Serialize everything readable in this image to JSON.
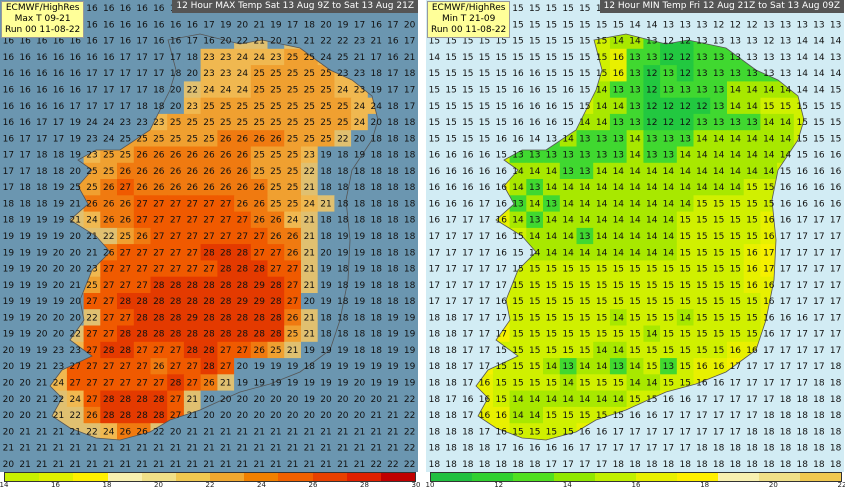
{
  "left_panel": {
    "title": "12 Hour MAX Temp Sat 13 Aug 9Z to Sat 13 Aug 21Z",
    "info": [
      "ECMWF/HighRes",
      "Max T 09-21",
      "Run 00 11-08-22"
    ],
    "background_color": "#6b96b0",
    "scale_labels": [
      "14",
      "16",
      "18",
      "20",
      "22",
      "24",
      "26",
      "28",
      "30"
    ],
    "scale_colors": [
      "#c8f000",
      "#e0f000",
      "#fff000",
      "#f8f0b0",
      "#f0e088",
      "#f0c850",
      "#f0a830",
      "#f08000",
      "#f06000",
      "#e84000",
      "#e02000",
      "#c00000"
    ],
    "grid": [
      [
        16,
        16,
        16,
        16,
        16,
        16,
        16,
        16,
        16,
        16,
        16,
        16,
        16,
        17,
        17,
        18,
        17,
        19,
        22,
        21,
        22,
        21,
        22,
        20,
        20
      ],
      [
        16,
        16,
        16,
        16,
        16,
        16,
        16,
        16,
        16,
        16,
        16,
        16,
        17,
        19,
        20,
        21,
        19,
        17,
        18,
        20,
        19,
        17,
        16,
        17,
        20
      ],
      [
        16,
        16,
        16,
        16,
        16,
        16,
        17,
        16,
        17,
        16,
        16,
        17,
        16,
        20,
        22,
        21,
        20,
        21,
        21,
        22,
        22,
        23,
        21,
        16,
        17
      ],
      [
        16,
        16,
        16,
        16,
        16,
        16,
        16,
        17,
        17,
        17,
        17,
        18,
        23,
        23,
        24,
        24,
        23,
        25,
        25,
        24,
        25,
        21,
        17,
        16,
        21
      ],
      [
        16,
        16,
        16,
        16,
        16,
        17,
        17,
        17,
        17,
        17,
        18,
        20,
        23,
        23,
        24,
        25,
        25,
        25,
        25,
        25,
        23,
        23,
        18,
        17,
        18
      ],
      [
        16,
        16,
        16,
        16,
        16,
        17,
        17,
        17,
        17,
        18,
        20,
        22,
        24,
        24,
        24,
        25,
        25,
        25,
        25,
        25,
        24,
        23,
        19,
        17,
        17
      ],
      [
        16,
        16,
        16,
        16,
        17,
        17,
        17,
        17,
        18,
        18,
        20,
        23,
        25,
        25,
        25,
        25,
        25,
        25,
        25,
        25,
        25,
        24,
        24,
        18,
        17
      ],
      [
        16,
        16,
        17,
        17,
        19,
        24,
        24,
        23,
        23,
        23,
        25,
        25,
        25,
        25,
        25,
        25,
        25,
        25,
        25,
        25,
        25,
        24,
        20,
        18,
        18
      ],
      [
        16,
        17,
        17,
        17,
        19,
        23,
        24,
        25,
        25,
        25,
        25,
        25,
        25,
        26,
        26,
        26,
        26,
        25,
        25,
        25,
        22,
        20,
        18,
        18,
        18
      ],
      [
        17,
        17,
        18,
        18,
        19,
        23,
        25,
        25,
        26,
        26,
        26,
        26,
        26,
        26,
        26,
        25,
        25,
        25,
        23,
        19,
        18,
        19,
        18,
        18,
        18
      ],
      [
        17,
        17,
        18,
        18,
        20,
        25,
        25,
        26,
        26,
        26,
        26,
        26,
        26,
        26,
        26,
        25,
        25,
        25,
        22,
        18,
        18,
        18,
        18,
        18,
        18
      ],
      [
        17,
        18,
        18,
        19,
        25,
        25,
        26,
        27,
        26,
        26,
        26,
        26,
        26,
        26,
        26,
        26,
        25,
        25,
        21,
        18,
        18,
        18,
        18,
        18,
        18
      ],
      [
        18,
        18,
        18,
        19,
        21,
        26,
        26,
        26,
        27,
        27,
        27,
        27,
        27,
        27,
        26,
        26,
        25,
        25,
        24,
        21,
        18,
        18,
        18,
        18,
        18
      ],
      [
        18,
        19,
        19,
        19,
        21,
        24,
        26,
        26,
        27,
        27,
        27,
        27,
        27,
        27,
        27,
        26,
        26,
        24,
        21,
        18,
        18,
        18,
        18,
        18,
        18
      ],
      [
        19,
        19,
        19,
        19,
        20,
        21,
        22,
        25,
        26,
        27,
        27,
        27,
        27,
        27,
        27,
        27,
        26,
        26,
        21,
        18,
        19,
        19,
        18,
        18,
        18
      ],
      [
        19,
        19,
        19,
        20,
        20,
        21,
        26,
        27,
        27,
        27,
        27,
        27,
        28,
        28,
        28,
        27,
        27,
        26,
        21,
        20,
        19,
        19,
        18,
        18,
        18
      ],
      [
        19,
        19,
        20,
        20,
        20,
        23,
        27,
        27,
        27,
        27,
        27,
        27,
        27,
        28,
        28,
        28,
        27,
        27,
        21,
        19,
        18,
        19,
        18,
        18,
        18
      ],
      [
        19,
        19,
        19,
        20,
        21,
        25,
        27,
        27,
        27,
        28,
        28,
        28,
        28,
        28,
        28,
        29,
        28,
        27,
        21,
        19,
        18,
        19,
        18,
        18,
        18
      ],
      [
        19,
        19,
        19,
        19,
        20,
        27,
        27,
        28,
        28,
        28,
        28,
        28,
        28,
        28,
        29,
        29,
        28,
        27,
        20,
        19,
        18,
        19,
        18,
        18,
        18
      ],
      [
        19,
        19,
        20,
        20,
        20,
        22,
        27,
        27,
        28,
        28,
        28,
        29,
        28,
        28,
        28,
        28,
        28,
        26,
        21,
        18,
        18,
        18,
        18,
        19,
        19
      ],
      [
        19,
        19,
        20,
        20,
        22,
        27,
        27,
        28,
        28,
        28,
        28,
        28,
        28,
        28,
        28,
        28,
        28,
        25,
        21,
        18,
        18,
        18,
        18,
        19,
        19
      ],
      [
        20,
        19,
        19,
        23,
        23,
        27,
        28,
        28,
        27,
        27,
        27,
        28,
        28,
        27,
        27,
        26,
        25,
        21,
        19,
        19,
        19,
        18,
        18,
        19,
        19
      ],
      [
        20,
        19,
        21,
        23,
        27,
        27,
        27,
        27,
        27,
        26,
        27,
        27,
        28,
        27,
        20,
        19,
        19,
        19,
        18,
        19,
        19,
        19,
        19,
        19,
        19
      ],
      [
        20,
        20,
        21,
        24,
        27,
        27,
        27,
        27,
        27,
        27,
        28,
        27,
        26,
        21,
        19,
        19,
        19,
        19,
        19,
        19,
        19,
        20,
        19,
        19,
        19
      ],
      [
        20,
        20,
        21,
        22,
        24,
        27,
        28,
        28,
        28,
        28,
        27,
        21,
        20,
        20,
        20,
        20,
        20,
        20,
        19,
        20,
        20,
        20,
        20,
        21,
        22
      ],
      [
        20,
        20,
        21,
        21,
        22,
        26,
        28,
        28,
        28,
        28,
        27,
        21,
        20,
        20,
        20,
        20,
        20,
        20,
        20,
        20,
        20,
        20,
        21,
        21,
        22
      ],
      [
        20,
        21,
        21,
        21,
        21,
        22,
        24,
        26,
        26,
        22,
        20,
        21,
        21,
        21,
        21,
        21,
        21,
        21,
        21,
        21,
        21,
        21,
        21,
        21,
        22
      ],
      [
        21,
        21,
        21,
        21,
        21,
        21,
        21,
        21,
        21,
        21,
        21,
        21,
        21,
        21,
        21,
        21,
        21,
        21,
        21,
        21,
        21,
        21,
        21,
        21,
        22
      ],
      [
        20,
        21,
        21,
        21,
        21,
        21,
        21,
        21,
        21,
        21,
        21,
        21,
        21,
        21,
        21,
        21,
        21,
        21,
        21,
        21,
        21,
        21,
        22,
        22,
        22
      ]
    ]
  },
  "right_panel": {
    "title": "12 Hour MIN Temp Fri 12 Aug 21Z to Sat 13 Aug 09Z",
    "info": [
      "ECMWF/HighRes",
      "Min T 21-09",
      "Run 00 11-08-22"
    ],
    "background_color": "#d2ecf4",
    "scale_labels": [
      "10",
      "12",
      "14",
      "16",
      "18",
      "20",
      "22"
    ],
    "scale_colors": [
      "#20c040",
      "#30d030",
      "#50e020",
      "#90e800",
      "#c0f000",
      "#e8f000",
      "#fff000",
      "#f8f0b0",
      "#f0e088",
      "#f0c850"
    ],
    "grid": [
      [
        15,
        15,
        15,
        15,
        15,
        15,
        15,
        15,
        15,
        15,
        15,
        15,
        14,
        14,
        14,
        14,
        13,
        13,
        13,
        13,
        13,
        13,
        12,
        12,
        12
      ],
      [
        15,
        15,
        15,
        15,
        15,
        15,
        15,
        15,
        15,
        15,
        15,
        15,
        14,
        14,
        13,
        13,
        13,
        12,
        12,
        12,
        13,
        13,
        13,
        13,
        13
      ],
      [
        15,
        15,
        15,
        15,
        15,
        15,
        15,
        15,
        15,
        15,
        15,
        14,
        14,
        13,
        12,
        12,
        13,
        13,
        13,
        13,
        12,
        13,
        14,
        14,
        14
      ],
      [
        14,
        15,
        15,
        15,
        15,
        15,
        15,
        15,
        15,
        15,
        15,
        16,
        13,
        13,
        12,
        12,
        13,
        13,
        13,
        13,
        13,
        13,
        14,
        14,
        13
      ],
      [
        15,
        15,
        15,
        15,
        15,
        16,
        16,
        15,
        15,
        15,
        15,
        16,
        13,
        12,
        13,
        12,
        13,
        13,
        13,
        13,
        13,
        13,
        14,
        14,
        14
      ],
      [
        15,
        15,
        15,
        15,
        15,
        16,
        16,
        15,
        16,
        15,
        14,
        13,
        13,
        12,
        13,
        13,
        13,
        13,
        14,
        14,
        14,
        14,
        14,
        14,
        15
      ],
      [
        15,
        15,
        15,
        15,
        15,
        16,
        16,
        16,
        15,
        15,
        14,
        14,
        13,
        12,
        12,
        12,
        12,
        13,
        14,
        14,
        15,
        15,
        15,
        15,
        15
      ],
      [
        15,
        15,
        15,
        15,
        15,
        16,
        16,
        16,
        15,
        14,
        14,
        13,
        13,
        12,
        12,
        12,
        13,
        13,
        13,
        13,
        14,
        14,
        15,
        15,
        15
      ],
      [
        15,
        15,
        15,
        15,
        16,
        16,
        14,
        13,
        14,
        13,
        13,
        13,
        14,
        13,
        13,
        13,
        14,
        14,
        14,
        14,
        14,
        14,
        15,
        15,
        15
      ],
      [
        16,
        16,
        16,
        16,
        15,
        13,
        13,
        13,
        13,
        13,
        13,
        13,
        14,
        13,
        13,
        14,
        14,
        14,
        14,
        14,
        14,
        14,
        15,
        16,
        16
      ],
      [
        16,
        16,
        16,
        16,
        16,
        14,
        14,
        14,
        13,
        13,
        14,
        14,
        14,
        14,
        14,
        14,
        14,
        14,
        14,
        14,
        14,
        15,
        16,
        16,
        16
      ],
      [
        16,
        16,
        16,
        16,
        16,
        14,
        13,
        14,
        14,
        14,
        14,
        14,
        14,
        14,
        14,
        14,
        14,
        14,
        14,
        15,
        15,
        16,
        16,
        16,
        16
      ],
      [
        16,
        16,
        16,
        17,
        16,
        13,
        14,
        13,
        14,
        14,
        14,
        14,
        14,
        14,
        14,
        14,
        15,
        15,
        15,
        15,
        15,
        16,
        16,
        16,
        16
      ],
      [
        16,
        17,
        17,
        17,
        16,
        14,
        13,
        14,
        14,
        14,
        14,
        14,
        14,
        14,
        14,
        15,
        15,
        15,
        15,
        15,
        16,
        16,
        17,
        17,
        17
      ],
      [
        17,
        17,
        17,
        17,
        16,
        15,
        14,
        14,
        14,
        13,
        14,
        14,
        14,
        14,
        14,
        15,
        15,
        15,
        15,
        15,
        16,
        17,
        17,
        17,
        17
      ],
      [
        17,
        17,
        17,
        17,
        16,
        15,
        14,
        14,
        14,
        14,
        14,
        14,
        14,
        14,
        14,
        15,
        15,
        15,
        15,
        16,
        17,
        17,
        17,
        17,
        17
      ],
      [
        17,
        17,
        17,
        17,
        17,
        15,
        15,
        15,
        15,
        15,
        15,
        15,
        15,
        15,
        15,
        15,
        15,
        15,
        15,
        16,
        17,
        17,
        17,
        17,
        17
      ],
      [
        17,
        17,
        17,
        17,
        17,
        15,
        15,
        15,
        15,
        15,
        15,
        15,
        15,
        15,
        15,
        15,
        15,
        15,
        15,
        16,
        16,
        17,
        17,
        17,
        17
      ],
      [
        17,
        17,
        17,
        17,
        16,
        15,
        15,
        15,
        15,
        15,
        15,
        15,
        15,
        15,
        15,
        15,
        15,
        15,
        15,
        15,
        16,
        17,
        17,
        17,
        17
      ],
      [
        18,
        18,
        17,
        17,
        17,
        15,
        15,
        15,
        15,
        15,
        15,
        14,
        15,
        15,
        15,
        14,
        15,
        15,
        15,
        15,
        16,
        16,
        16,
        17,
        17
      ],
      [
        18,
        18,
        17,
        17,
        17,
        15,
        15,
        15,
        15,
        15,
        15,
        15,
        15,
        14,
        15,
        15,
        15,
        15,
        15,
        15,
        16,
        17,
        17,
        17,
        17
      ],
      [
        18,
        18,
        17,
        17,
        15,
        15,
        15,
        15,
        15,
        15,
        14,
        14,
        15,
        15,
        15,
        15,
        15,
        15,
        16,
        16,
        17,
        17,
        17,
        17,
        17
      ],
      [
        18,
        18,
        17,
        17,
        15,
        15,
        15,
        14,
        13,
        14,
        14,
        13,
        14,
        15,
        13,
        15,
        16,
        16,
        17,
        17,
        17,
        17,
        17,
        17,
        18
      ],
      [
        18,
        18,
        17,
        16,
        15,
        15,
        15,
        15,
        14,
        15,
        15,
        15,
        14,
        14,
        15,
        15,
        16,
        16,
        17,
        17,
        17,
        17,
        17,
        18,
        18
      ],
      [
        18,
        17,
        16,
        16,
        15,
        14,
        14,
        14,
        14,
        14,
        14,
        14,
        15,
        15,
        16,
        16,
        17,
        17,
        17,
        17,
        17,
        18,
        18,
        18,
        18
      ],
      [
        18,
        18,
        17,
        16,
        16,
        14,
        14,
        15,
        15,
        15,
        15,
        15,
        16,
        16,
        17,
        17,
        17,
        17,
        17,
        17,
        18,
        18,
        18,
        18,
        18
      ],
      [
        18,
        18,
        18,
        17,
        16,
        15,
        15,
        15,
        15,
        16,
        16,
        17,
        17,
        17,
        17,
        17,
        17,
        17,
        17,
        18,
        18,
        18,
        18,
        18,
        18
      ],
      [
        18,
        18,
        18,
        18,
        17,
        16,
        16,
        16,
        16,
        17,
        17,
        17,
        17,
        17,
        17,
        17,
        18,
        18,
        18,
        18,
        18,
        18,
        18,
        18,
        18
      ],
      [
        18,
        18,
        18,
        18,
        18,
        18,
        18,
        17,
        17,
        17,
        17,
        18,
        18,
        18,
        18,
        18,
        18,
        18,
        18,
        18,
        18,
        18,
        18,
        18,
        18
      ]
    ]
  }
}
